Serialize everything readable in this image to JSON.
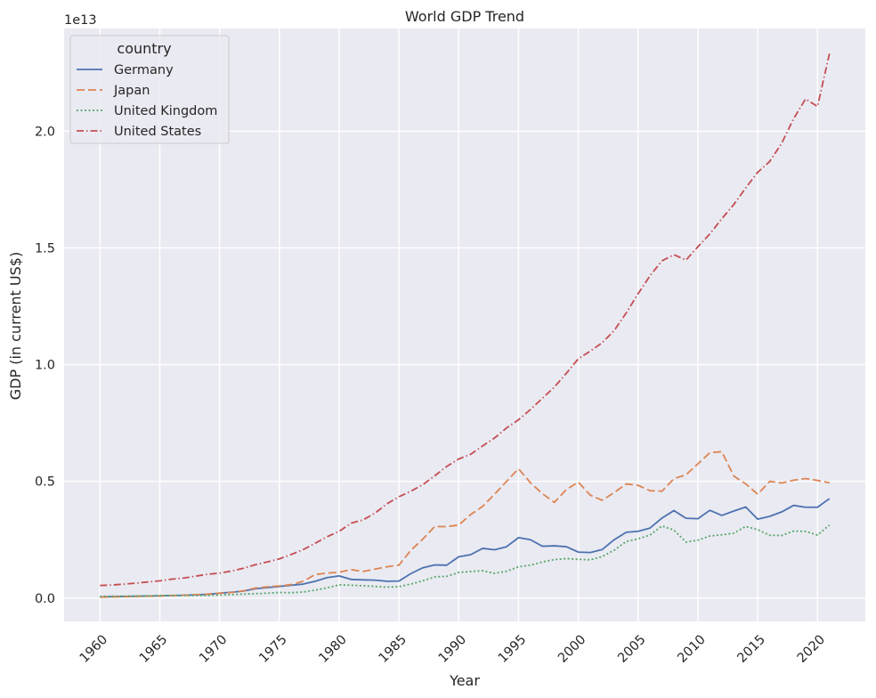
{
  "chart_data": {
    "type": "line",
    "title": "World GDP Trend",
    "xlabel": "Year",
    "ylabel": "GDP (in current US$)",
    "y_offset_label": "1e13",
    "xlim": [
      1957,
      2024
    ],
    "ylim": [
      -0.1,
      2.44
    ],
    "y_unit_multiplier": 10000000000000.0,
    "x_ticks": [
      1960,
      1965,
      1970,
      1975,
      1980,
      1985,
      1990,
      1995,
      2000,
      2005,
      2010,
      2015,
      2020
    ],
    "y_ticks": [
      0.0,
      0.5,
      1.0,
      1.5,
      2.0
    ],
    "y_tick_labels": [
      "0.0",
      "0.5",
      "1.0",
      "1.5",
      "2.0"
    ],
    "grid": true,
    "legend": {
      "title": "country",
      "position": "top-left"
    },
    "background_color": "#eaeaf2",
    "x": [
      1960,
      1961,
      1962,
      1963,
      1964,
      1965,
      1966,
      1967,
      1968,
      1969,
      1970,
      1971,
      1972,
      1973,
      1974,
      1975,
      1976,
      1977,
      1978,
      1979,
      1980,
      1981,
      1982,
      1983,
      1984,
      1985,
      1986,
      1987,
      1988,
      1989,
      1990,
      1991,
      1992,
      1993,
      1994,
      1995,
      1996,
      1997,
      1998,
      1999,
      2000,
      2001,
      2002,
      2003,
      2004,
      2005,
      2006,
      2007,
      2008,
      2009,
      2010,
      2011,
      2012,
      2013,
      2014,
      2015,
      2016,
      2017,
      2018,
      2019,
      2020,
      2021
    ],
    "series": [
      {
        "name": "Germany",
        "color": "#4c72b0",
        "dash": "solid",
        "values": [
          0.005,
          0.006,
          0.007,
          0.008,
          0.009,
          0.01,
          0.011,
          0.012,
          0.014,
          0.016,
          0.021,
          0.025,
          0.03,
          0.04,
          0.045,
          0.05,
          0.055,
          0.06,
          0.072,
          0.088,
          0.095,
          0.08,
          0.078,
          0.077,
          0.072,
          0.073,
          0.105,
          0.13,
          0.142,
          0.141,
          0.177,
          0.186,
          0.213,
          0.207,
          0.22,
          0.259,
          0.25,
          0.222,
          0.224,
          0.22,
          0.197,
          0.195,
          0.208,
          0.25,
          0.282,
          0.286,
          0.3,
          0.343,
          0.375,
          0.342,
          0.34,
          0.376,
          0.354,
          0.373,
          0.39,
          0.338,
          0.35,
          0.369,
          0.397,
          0.389,
          0.389,
          0.426
        ]
      },
      {
        "name": "Japan",
        "color": "#dd8452",
        "dash": "9,4",
        "values": [
          0.004,
          0.005,
          0.006,
          0.007,
          0.008,
          0.009,
          0.011,
          0.012,
          0.015,
          0.017,
          0.021,
          0.024,
          0.031,
          0.043,
          0.048,
          0.052,
          0.058,
          0.072,
          0.101,
          0.107,
          0.111,
          0.122,
          0.114,
          0.124,
          0.134,
          0.141,
          0.205,
          0.253,
          0.307,
          0.306,
          0.313,
          0.358,
          0.393,
          0.445,
          0.5,
          0.554,
          0.494,
          0.447,
          0.41,
          0.465,
          0.497,
          0.441,
          0.419,
          0.452,
          0.489,
          0.483,
          0.46,
          0.458,
          0.512,
          0.528,
          0.575,
          0.623,
          0.627,
          0.523,
          0.489,
          0.445,
          0.5,
          0.493,
          0.505,
          0.512,
          0.504,
          0.494
        ]
      },
      {
        "name": "United Kingdom",
        "color": "#55a868",
        "dash": "2,2.5",
        "values": [
          0.007,
          0.008,
          0.008,
          0.009,
          0.009,
          0.01,
          0.011,
          0.011,
          0.011,
          0.012,
          0.013,
          0.015,
          0.017,
          0.019,
          0.021,
          0.024,
          0.023,
          0.026,
          0.034,
          0.044,
          0.057,
          0.055,
          0.053,
          0.05,
          0.047,
          0.049,
          0.06,
          0.074,
          0.091,
          0.093,
          0.11,
          0.114,
          0.117,
          0.106,
          0.115,
          0.134,
          0.141,
          0.155,
          0.165,
          0.169,
          0.166,
          0.164,
          0.178,
          0.205,
          0.242,
          0.254,
          0.27,
          0.309,
          0.291,
          0.24,
          0.248,
          0.266,
          0.271,
          0.278,
          0.307,
          0.293,
          0.269,
          0.268,
          0.287,
          0.286,
          0.27,
          0.313
        ]
      },
      {
        "name": "United States",
        "color": "#c44e52",
        "dash": "8,3,1.5,3",
        "values": [
          0.054,
          0.056,
          0.06,
          0.064,
          0.069,
          0.074,
          0.081,
          0.086,
          0.094,
          0.102,
          0.107,
          0.116,
          0.128,
          0.143,
          0.155,
          0.168,
          0.187,
          0.208,
          0.235,
          0.263,
          0.286,
          0.321,
          0.335,
          0.364,
          0.404,
          0.434,
          0.458,
          0.486,
          0.524,
          0.564,
          0.596,
          0.616,
          0.652,
          0.686,
          0.729,
          0.764,
          0.808,
          0.856,
          0.904,
          0.963,
          1.025,
          1.058,
          1.094,
          1.146,
          1.221,
          1.304,
          1.381,
          1.445,
          1.471,
          1.448,
          1.505,
          1.56,
          1.625,
          1.686,
          1.757,
          1.824,
          1.87,
          1.948,
          2.053,
          2.138,
          2.106,
          2.332
        ]
      }
    ]
  }
}
